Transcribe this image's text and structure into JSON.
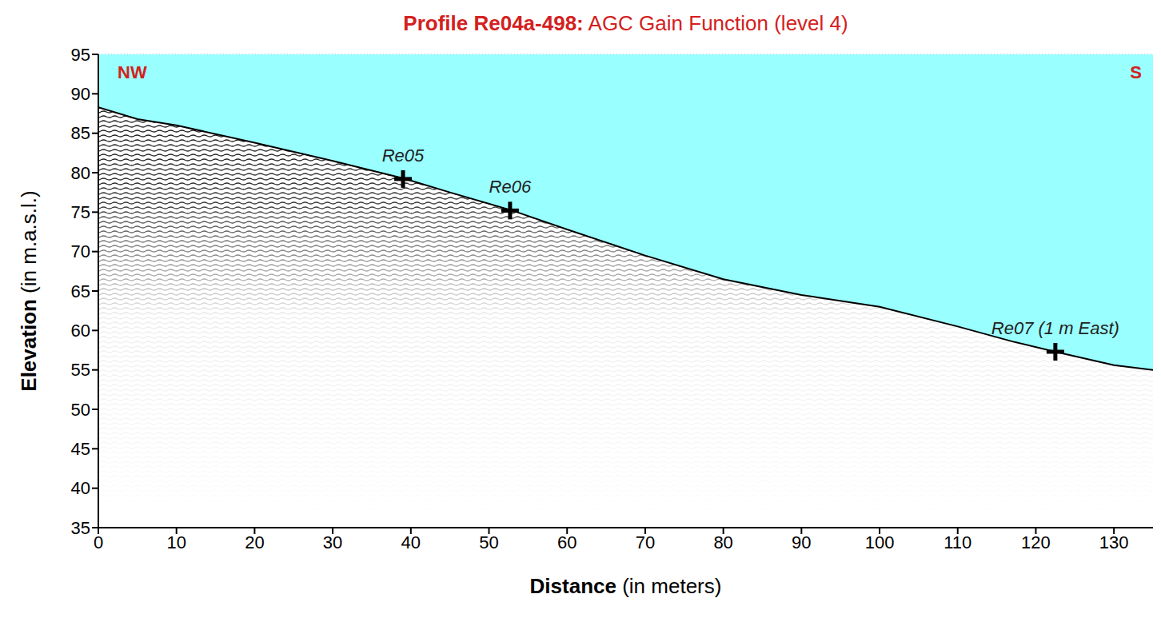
{
  "chart_data": {
    "type": "area",
    "title": "Profile Re04a-498: AGC Gain Function (level 4)",
    "x_label": "Distance (in meters)",
    "y_label": "Elevation (in m.a.s.l.)",
    "x": [
      0,
      5,
      10,
      20,
      30,
      39,
      45,
      53,
      60,
      70,
      80,
      90,
      100,
      110,
      117,
      122.5,
      130,
      135
    ],
    "values": [
      88.3,
      86.8,
      86,
      83.8,
      81.5,
      79.3,
      77.5,
      75.2,
      72.8,
      69.5,
      66.5,
      64.5,
      63,
      60.5,
      58.6,
      57.3,
      55.6,
      55
    ],
    "color": "#000000",
    "xlim": [
      0,
      135
    ],
    "ylim": [
      35,
      95
    ],
    "xticks": [
      0,
      10,
      20,
      30,
      40,
      50,
      60,
      70,
      80,
      90,
      100,
      110,
      120,
      130
    ],
    "yticks": [
      35,
      40,
      45,
      50,
      55,
      60,
      65,
      70,
      75,
      80,
      85,
      90,
      95
    ],
    "grid": true,
    "markers": [
      {
        "label": "Re05",
        "x": 39,
        "y": 79.2
      },
      {
        "label": "Re06",
        "x": 52.7,
        "y": 75.2
      },
      {
        "label": "Re07 (1 m East)",
        "x": 122.5,
        "y": 57.3
      }
    ],
    "annotations": [
      "NW",
      "S"
    ]
  }
}
